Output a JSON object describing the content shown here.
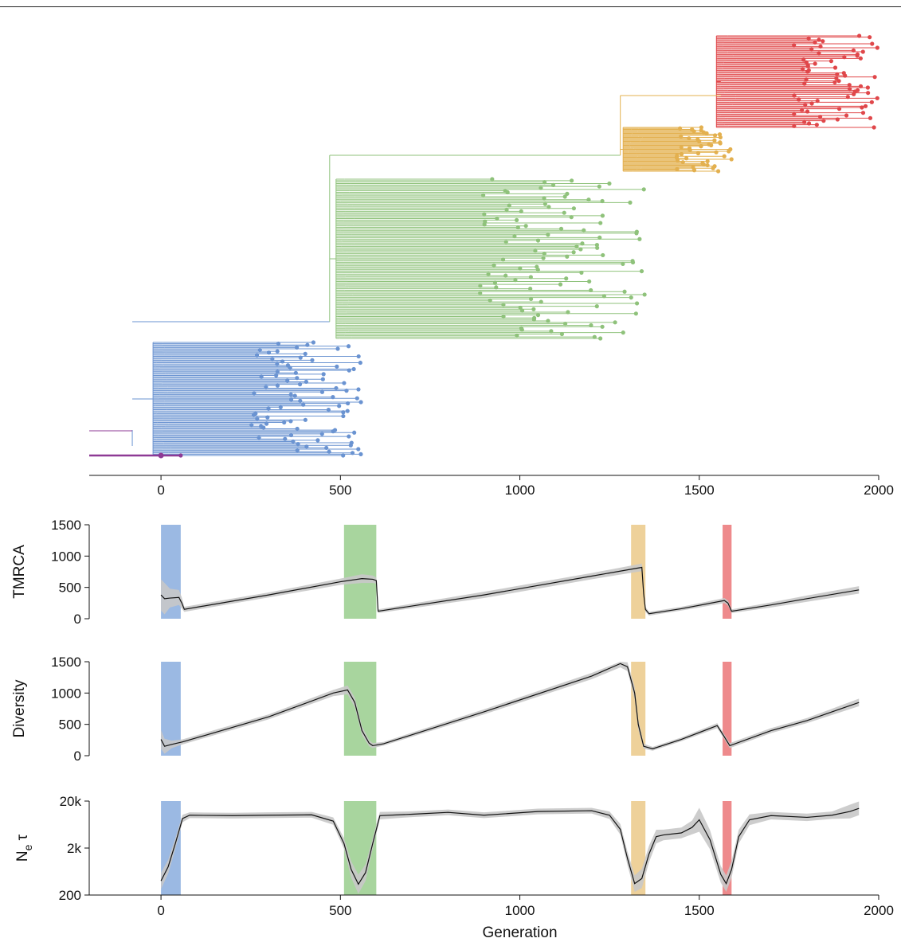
{
  "colors": {
    "blue": "#6a93d1",
    "green": "#8fc27b",
    "yellow": "#e3b04f",
    "red": "#e0474a",
    "purple": "#8e3a95",
    "band_blue": "#9bb9e3",
    "band_green": "#a8d59e",
    "band_yellow": "#eed19a",
    "band_red": "#ee8a8c",
    "ci": "#c8c8c8",
    "line": "#111111"
  },
  "tree": {
    "x_ticks": [
      0,
      500,
      1000,
      1500,
      2000
    ],
    "x_tick_labels": [
      "0",
      "500",
      "1000",
      "1500",
      "2000"
    ],
    "xlim": [
      -200,
      2000
    ],
    "clades": [
      {
        "color": "blue",
        "root_x": -80,
        "x_start": 0,
        "x_end": 560
      },
      {
        "color": "green",
        "root_x": 470,
        "x_start": 510,
        "x_end": 1350
      },
      {
        "color": "yellow",
        "root_x": 1280,
        "x_start": 1310,
        "x_end": 1590
      },
      {
        "color": "red",
        "root_x": 1560,
        "x_start": 1570,
        "x_end": 2000
      }
    ]
  },
  "chart_data": [
    {
      "type": "line",
      "ylabel": "TMRCA",
      "xlim": [
        -200,
        2000
      ],
      "ylim": [
        0,
        1500
      ],
      "y_ticks": [
        0,
        500,
        1000,
        1500
      ],
      "y_tick_labels": [
        "0",
        "500",
        "1000",
        "1500"
      ],
      "bands": [
        {
          "x0": 0,
          "x1": 55,
          "color": "band_blue"
        },
        {
          "x0": 510,
          "x1": 600,
          "color": "band_green"
        },
        {
          "x0": 1310,
          "x1": 1350,
          "color": "band_yellow"
        },
        {
          "x0": 1565,
          "x1": 1590,
          "color": "band_red"
        }
      ],
      "series": [
        {
          "x": [
            0,
            10,
            25,
            50,
            58,
            65,
            300,
            500,
            560,
            590,
            600,
            605,
            900,
            1200,
            1340,
            1345,
            1350,
            1360,
            1450,
            1570,
            1580,
            1590,
            1700,
            1800,
            1945
          ],
          "y": [
            380,
            320,
            330,
            340,
            250,
            150,
            380,
            590,
            640,
            630,
            610,
            120,
            380,
            680,
            820,
            400,
            150,
            80,
            160,
            290,
            250,
            120,
            220,
            320,
            460
          ],
          "ci": [
            250,
            250,
            150,
            120,
            90,
            40,
            40,
            50,
            70,
            60,
            50,
            30,
            50,
            50,
            60,
            60,
            40,
            30,
            30,
            40,
            40,
            30,
            40,
            50,
            60
          ]
        }
      ]
    },
    {
      "type": "line",
      "ylabel": "Diversity",
      "xlim": [
        -200,
        2000
      ],
      "ylim": [
        0,
        1500
      ],
      "y_ticks": [
        0,
        500,
        1000,
        1500
      ],
      "y_tick_labels": [
        "0",
        "500",
        "1000",
        "1500"
      ],
      "bands": [
        {
          "x0": 0,
          "x1": 55,
          "color": "band_blue"
        },
        {
          "x0": 510,
          "x1": 600,
          "color": "band_green"
        },
        {
          "x0": 1310,
          "x1": 1350,
          "color": "band_yellow"
        },
        {
          "x0": 1565,
          "x1": 1590,
          "color": "band_red"
        }
      ],
      "series": [
        {
          "x": [
            0,
            10,
            30,
            60,
            300,
            480,
            520,
            540,
            560,
            580,
            590,
            620,
            900,
            1200,
            1280,
            1300,
            1320,
            1330,
            1345,
            1370,
            1450,
            1550,
            1570,
            1585,
            1700,
            1800,
            1945
          ],
          "y": [
            260,
            150,
            180,
            220,
            620,
            1000,
            1050,
            850,
            400,
            200,
            160,
            190,
            700,
            1270,
            1470,
            1420,
            1000,
            500,
            150,
            110,
            260,
            480,
            300,
            160,
            400,
            560,
            850
          ],
          "ci": [
            150,
            120,
            60,
            40,
            40,
            50,
            70,
            80,
            70,
            50,
            40,
            30,
            40,
            50,
            60,
            70,
            100,
            80,
            40,
            30,
            30,
            40,
            40,
            40,
            40,
            40,
            60
          ]
        }
      ]
    },
    {
      "type": "line",
      "ylabel": "N",
      "ylabel_sub": "e",
      "ylabel_suffix": "τ",
      "xlabel": "Generation",
      "xlim": [
        -200,
        2000
      ],
      "ylim": [
        200,
        20000
      ],
      "log_y": true,
      "y_ticks": [
        200,
        2000,
        20000
      ],
      "y_tick_labels": [
        "200",
        "2k",
        "20k"
      ],
      "x_ticks": [
        0,
        500,
        1000,
        1500,
        2000
      ],
      "x_tick_labels": [
        "0",
        "500",
        "1000",
        "1500",
        "2000"
      ],
      "bands": [
        {
          "x0": 0,
          "x1": 55,
          "color": "band_blue"
        },
        {
          "x0": 510,
          "x1": 600,
          "color": "band_green"
        },
        {
          "x0": 1310,
          "x1": 1350,
          "color": "band_yellow"
        },
        {
          "x0": 1565,
          "x1": 1590,
          "color": "band_red"
        }
      ],
      "series": [
        {
          "x": [
            0,
            20,
            40,
            60,
            80,
            200,
            300,
            420,
            480,
            510,
            530,
            550,
            570,
            590,
            610,
            700,
            800,
            900,
            1050,
            1200,
            1250,
            1280,
            1300,
            1320,
            1340,
            1360,
            1380,
            1400,
            1450,
            1480,
            1500,
            1530,
            1560,
            1575,
            1590,
            1610,
            1640,
            1700,
            1800,
            1870,
            1920,
            1945
          ],
          "y": [
            400,
            800,
            2500,
            8500,
            10000,
            9800,
            10000,
            10200,
            7500,
            2500,
            700,
            340,
            600,
            2500,
            9800,
            10500,
            11500,
            10000,
            12000,
            12500,
            10000,
            5000,
            1200,
            350,
            450,
            1500,
            3500,
            3800,
            4200,
            5500,
            8000,
            3000,
            550,
            350,
            700,
            3500,
            8000,
            9800,
            9000,
            10000,
            12000,
            14000
          ],
          "ci_factor": [
            1.5,
            1.4,
            1.3,
            1.2,
            1.15,
            1.15,
            1.15,
            1.15,
            1.2,
            1.3,
            1.5,
            1.6,
            1.5,
            1.3,
            1.2,
            1.15,
            1.15,
            1.15,
            1.15,
            1.15,
            1.2,
            1.3,
            1.4,
            1.5,
            1.6,
            1.5,
            1.4,
            1.3,
            1.3,
            1.4,
            1.8,
            1.6,
            1.5,
            1.5,
            1.5,
            1.4,
            1.3,
            1.2,
            1.2,
            1.2,
            1.4,
            1.4
          ]
        }
      ]
    }
  ]
}
